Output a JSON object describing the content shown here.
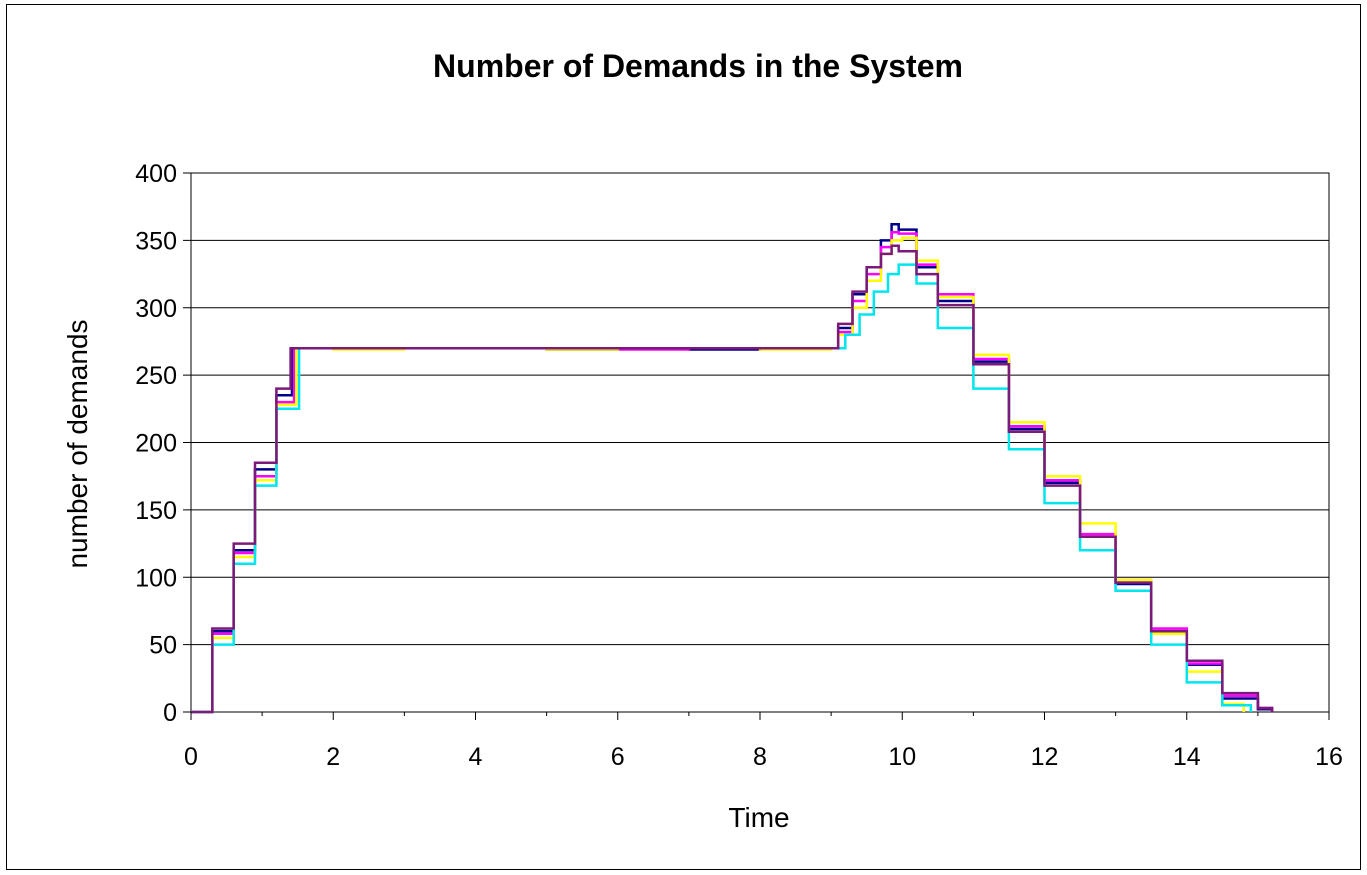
{
  "chart_data": {
    "type": "line",
    "title": "Number of Demands in the System",
    "xlabel": "Time",
    "ylabel": "number of demands",
    "xlim": [
      0,
      16
    ],
    "ylim": [
      0,
      400
    ],
    "x_ticks": [
      "0",
      "2",
      "4",
      "6",
      "8",
      "10",
      "12",
      "14",
      "16"
    ],
    "y_ticks": [
      "0",
      "50",
      "100",
      "150",
      "200",
      "250",
      "300",
      "350",
      "400"
    ],
    "grid": "horizontal",
    "legend": "none",
    "series": [
      {
        "color": "#00008B",
        "x": [
          0,
          0.3,
          0.6,
          0.9,
          1.2,
          1.42,
          2,
          3,
          4,
          5,
          6,
          7,
          8,
          9.0,
          9.1,
          9.3,
          9.5,
          9.7,
          9.85,
          9.95,
          10.2,
          10.5,
          11,
          11.5,
          12,
          12.5,
          13,
          13.5,
          14,
          14.5,
          15,
          15.2
        ],
        "y": [
          0,
          60,
          120,
          180,
          235,
          270,
          270,
          270,
          270,
          269,
          270,
          269,
          270,
          270,
          285,
          310,
          330,
          350,
          362,
          358,
          330,
          305,
          260,
          210,
          170,
          130,
          95,
          60,
          35,
          10,
          2,
          0
        ]
      },
      {
        "color": "#FF00FF",
        "x": [
          0,
          0.3,
          0.6,
          0.9,
          1.2,
          1.45,
          2,
          3,
          4,
          5,
          6,
          7,
          8,
          9.0,
          9.1,
          9.3,
          9.5,
          9.7,
          9.85,
          9.95,
          10.2,
          10.5,
          11,
          11.5,
          12,
          12.5,
          13,
          13.5,
          14,
          14.5,
          15,
          15.2
        ],
        "y": [
          0,
          58,
          118,
          175,
          230,
          270,
          270,
          270,
          270,
          270,
          269,
          270,
          270,
          270,
          282,
          305,
          325,
          345,
          356,
          355,
          332,
          310,
          262,
          212,
          172,
          132,
          98,
          62,
          36,
          12,
          3,
          0
        ]
      },
      {
        "color": "#FFFF00",
        "x": [
          0,
          0.3,
          0.6,
          0.9,
          1.2,
          1.48,
          2,
          3,
          4,
          5,
          6,
          7,
          8,
          9.0,
          9.1,
          9.3,
          9.5,
          9.7,
          9.85,
          10.0,
          10.2,
          10.5,
          11,
          11.5,
          12,
          12.5,
          13,
          13.5,
          14,
          14.5,
          14.8
        ],
        "y": [
          0,
          55,
          115,
          172,
          228,
          270,
          269,
          270,
          270,
          269,
          270,
          270,
          269,
          270,
          280,
          300,
          320,
          340,
          350,
          352,
          335,
          308,
          265,
          215,
          175,
          140,
          98,
          58,
          30,
          6,
          0
        ]
      },
      {
        "color": "#00E5EE",
        "x": [
          0,
          0.3,
          0.6,
          0.9,
          1.2,
          1.52,
          2,
          3,
          4,
          5,
          6,
          7,
          8,
          9.0,
          9.2,
          9.4,
          9.6,
          9.8,
          9.95,
          10.2,
          10.5,
          11,
          11.5,
          12,
          12.5,
          13,
          13.5,
          14,
          14.5,
          14.9
        ],
        "y": [
          0,
          50,
          110,
          168,
          225,
          270,
          270,
          270,
          270,
          270,
          270,
          270,
          270,
          270,
          280,
          295,
          312,
          325,
          332,
          318,
          285,
          240,
          195,
          155,
          120,
          90,
          50,
          22,
          5,
          0
        ]
      },
      {
        "color": "#7B1A7B",
        "x": [
          0,
          0.3,
          0.6,
          0.9,
          1.2,
          1.4,
          2,
          3,
          4,
          5,
          6,
          7,
          8,
          9.0,
          9.1,
          9.3,
          9.5,
          9.7,
          9.85,
          9.95,
          10.2,
          10.5,
          11,
          11.5,
          12,
          12.5,
          13,
          13.5,
          14,
          14.5,
          15,
          15.2
        ],
        "y": [
          0,
          62,
          125,
          185,
          240,
          270,
          270,
          270,
          270,
          270,
          270,
          270,
          270,
          270,
          288,
          312,
          330,
          340,
          346,
          342,
          325,
          302,
          258,
          208,
          168,
          130,
          96,
          60,
          38,
          14,
          3,
          0
        ]
      }
    ]
  }
}
